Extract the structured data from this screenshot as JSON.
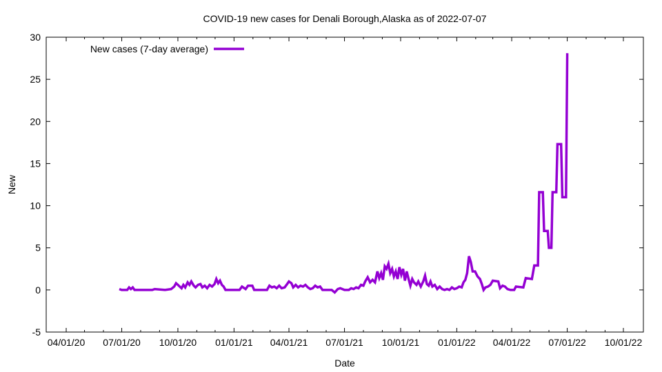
{
  "chart_data": {
    "type": "line",
    "title": "COVID-19 new cases for Denali Borough,Alaska as of 2022-07-07",
    "xlabel": "Date",
    "ylabel": "New",
    "xlim": [
      "2020-04-01",
      "2022-10-01"
    ],
    "ylim": [
      -5,
      30
    ],
    "x_ticks": [
      "04/01/20",
      "07/01/20",
      "10/01/20",
      "01/01/21",
      "04/01/21",
      "07/01/21",
      "10/01/21",
      "01/01/22",
      "04/01/22",
      "07/01/22",
      "10/01/22"
    ],
    "y_ticks": [
      -5,
      0,
      5,
      10,
      15,
      20,
      25,
      30
    ],
    "legend_position": "top-left",
    "grid": false,
    "series": [
      {
        "name": "New cases (7-day average)",
        "color": "#9400d3",
        "points": [
          [
            "2020-06-27",
            0.1
          ],
          [
            "2020-07-01",
            0.0
          ],
          [
            "2020-07-10",
            0.0
          ],
          [
            "2020-07-13",
            0.3
          ],
          [
            "2020-07-16",
            0.1
          ],
          [
            "2020-07-19",
            0.3
          ],
          [
            "2020-07-22",
            0.0
          ],
          [
            "2020-08-10",
            0.0
          ],
          [
            "2020-08-20",
            0.0
          ],
          [
            "2020-08-24",
            0.1
          ],
          [
            "2020-09-10",
            0.0
          ],
          [
            "2020-09-20",
            0.1
          ],
          [
            "2020-09-25",
            0.4
          ],
          [
            "2020-09-28",
            0.8
          ],
          [
            "2020-10-01",
            0.6
          ],
          [
            "2020-10-04",
            0.4
          ],
          [
            "2020-10-07",
            0.2
          ],
          [
            "2020-10-10",
            0.6
          ],
          [
            "2020-10-13",
            0.3
          ],
          [
            "2020-10-17",
            0.9
          ],
          [
            "2020-10-20",
            0.6
          ],
          [
            "2020-10-23",
            1.0
          ],
          [
            "2020-10-27",
            0.5
          ],
          [
            "2020-10-30",
            0.3
          ],
          [
            "2020-11-03",
            0.6
          ],
          [
            "2020-11-07",
            0.7
          ],
          [
            "2020-11-10",
            0.3
          ],
          [
            "2020-11-14",
            0.5
          ],
          [
            "2020-11-18",
            0.2
          ],
          [
            "2020-11-22",
            0.6
          ],
          [
            "2020-11-26",
            0.4
          ],
          [
            "2020-11-30",
            0.7
          ],
          [
            "2020-12-03",
            1.3
          ],
          [
            "2020-12-06",
            0.8
          ],
          [
            "2020-12-09",
            1.1
          ],
          [
            "2020-12-12",
            0.6
          ],
          [
            "2020-12-15",
            0.4
          ],
          [
            "2020-12-18",
            0.0
          ],
          [
            "2021-01-10",
            0.0
          ],
          [
            "2021-01-14",
            0.4
          ],
          [
            "2021-01-20",
            0.1
          ],
          [
            "2021-01-24",
            0.5
          ],
          [
            "2021-01-31",
            0.5
          ],
          [
            "2021-02-03",
            0.0
          ],
          [
            "2021-02-24",
            0.0
          ],
          [
            "2021-02-28",
            0.5
          ],
          [
            "2021-03-04",
            0.3
          ],
          [
            "2021-03-08",
            0.4
          ],
          [
            "2021-03-12",
            0.2
          ],
          [
            "2021-03-16",
            0.5
          ],
          [
            "2021-03-20",
            0.2
          ],
          [
            "2021-03-25",
            0.3
          ],
          [
            "2021-03-29",
            0.7
          ],
          [
            "2021-04-01",
            1.0
          ],
          [
            "2021-04-05",
            0.8
          ],
          [
            "2021-04-08",
            0.3
          ],
          [
            "2021-04-12",
            0.6
          ],
          [
            "2021-04-16",
            0.3
          ],
          [
            "2021-04-20",
            0.5
          ],
          [
            "2021-04-24",
            0.4
          ],
          [
            "2021-04-28",
            0.6
          ],
          [
            "2021-05-02",
            0.3
          ],
          [
            "2021-05-06",
            0.1
          ],
          [
            "2021-05-10",
            0.2
          ],
          [
            "2021-05-14",
            0.5
          ],
          [
            "2021-05-18",
            0.3
          ],
          [
            "2021-05-22",
            0.4
          ],
          [
            "2021-05-26",
            0.0
          ],
          [
            "2021-06-05",
            0.0
          ],
          [
            "2021-06-10",
            0.0
          ],
          [
            "2021-06-15",
            -0.3
          ],
          [
            "2021-06-20",
            0.1
          ],
          [
            "2021-06-24",
            0.2
          ],
          [
            "2021-07-01",
            0.0
          ],
          [
            "2021-07-08",
            0.0
          ],
          [
            "2021-07-12",
            0.2
          ],
          [
            "2021-07-16",
            0.1
          ],
          [
            "2021-07-20",
            0.3
          ],
          [
            "2021-07-24",
            0.2
          ],
          [
            "2021-07-28",
            0.6
          ],
          [
            "2021-08-01",
            0.5
          ],
          [
            "2021-08-04",
            1.0
          ],
          [
            "2021-08-08",
            1.5
          ],
          [
            "2021-08-12",
            0.9
          ],
          [
            "2021-08-16",
            1.2
          ],
          [
            "2021-08-20",
            0.9
          ],
          [
            "2021-08-24",
            2.2
          ],
          [
            "2021-08-27",
            1.4
          ],
          [
            "2021-08-30",
            2.0
          ],
          [
            "2021-09-02",
            1.2
          ],
          [
            "2021-09-05",
            2.8
          ],
          [
            "2021-09-08",
            2.5
          ],
          [
            "2021-09-11",
            3.1
          ],
          [
            "2021-09-14",
            2.0
          ],
          [
            "2021-09-17",
            2.5
          ],
          [
            "2021-09-20",
            1.6
          ],
          [
            "2021-09-23",
            2.2
          ],
          [
            "2021-09-26",
            1.3
          ],
          [
            "2021-09-29",
            2.7
          ],
          [
            "2021-10-02",
            1.8
          ],
          [
            "2021-10-05",
            2.5
          ],
          [
            "2021-10-08",
            1.1
          ],
          [
            "2021-10-11",
            2.2
          ],
          [
            "2021-10-14",
            1.3
          ],
          [
            "2021-10-17",
            0.5
          ],
          [
            "2021-10-20",
            1.3
          ],
          [
            "2021-10-23",
            0.9
          ],
          [
            "2021-10-27",
            0.6
          ],
          [
            "2021-10-30",
            1.0
          ],
          [
            "2021-11-03",
            0.4
          ],
          [
            "2021-11-07",
            1.0
          ],
          [
            "2021-11-10",
            1.7
          ],
          [
            "2021-11-13",
            0.7
          ],
          [
            "2021-11-16",
            0.5
          ],
          [
            "2021-11-19",
            1.0
          ],
          [
            "2021-11-22",
            0.4
          ],
          [
            "2021-11-26",
            0.6
          ],
          [
            "2021-11-30",
            0.1
          ],
          [
            "2021-12-04",
            0.4
          ],
          [
            "2021-12-08",
            0.1
          ],
          [
            "2021-12-12",
            0.0
          ],
          [
            "2021-12-16",
            0.1
          ],
          [
            "2021-12-20",
            0.0
          ],
          [
            "2021-12-24",
            0.3
          ],
          [
            "2021-12-28",
            0.1
          ],
          [
            "2022-01-01",
            0.2
          ],
          [
            "2022-01-05",
            0.4
          ],
          [
            "2022-01-09",
            0.3
          ],
          [
            "2022-01-12",
            0.9
          ],
          [
            "2022-01-15",
            1.2
          ],
          [
            "2022-01-18",
            2.0
          ],
          [
            "2022-01-21",
            4.0
          ],
          [
            "2022-01-24",
            3.3
          ],
          [
            "2022-01-27",
            2.2
          ],
          [
            "2022-01-31",
            2.2
          ],
          [
            "2022-02-04",
            1.6
          ],
          [
            "2022-02-08",
            1.3
          ],
          [
            "2022-02-11",
            0.7
          ],
          [
            "2022-02-14",
            0.0
          ],
          [
            "2022-02-17",
            0.3
          ],
          [
            "2022-02-21",
            0.4
          ],
          [
            "2022-02-25",
            0.6
          ],
          [
            "2022-03-01",
            1.1
          ],
          [
            "2022-03-10",
            1.0
          ],
          [
            "2022-03-13",
            0.2
          ],
          [
            "2022-03-17",
            0.5
          ],
          [
            "2022-03-21",
            0.4
          ],
          [
            "2022-03-25",
            0.1
          ],
          [
            "2022-03-30",
            0.0
          ],
          [
            "2022-04-05",
            0.0
          ],
          [
            "2022-04-08",
            0.4
          ],
          [
            "2022-04-20",
            0.3
          ],
          [
            "2022-04-24",
            1.4
          ],
          [
            "2022-05-04",
            1.3
          ],
          [
            "2022-05-08",
            2.9
          ],
          [
            "2022-05-14",
            2.9
          ],
          [
            "2022-05-16",
            11.6
          ],
          [
            "2022-05-22",
            11.6
          ],
          [
            "2022-05-24",
            7.0
          ],
          [
            "2022-05-30",
            7.0
          ],
          [
            "2022-06-01",
            5.0
          ],
          [
            "2022-06-05",
            5.0
          ],
          [
            "2022-06-07",
            11.6
          ],
          [
            "2022-06-13",
            11.6
          ],
          [
            "2022-06-15",
            17.3
          ],
          [
            "2022-06-21",
            17.3
          ],
          [
            "2022-06-23",
            11.0
          ],
          [
            "2022-06-29",
            11.0
          ],
          [
            "2022-07-01",
            28.1
          ]
        ]
      }
    ]
  }
}
